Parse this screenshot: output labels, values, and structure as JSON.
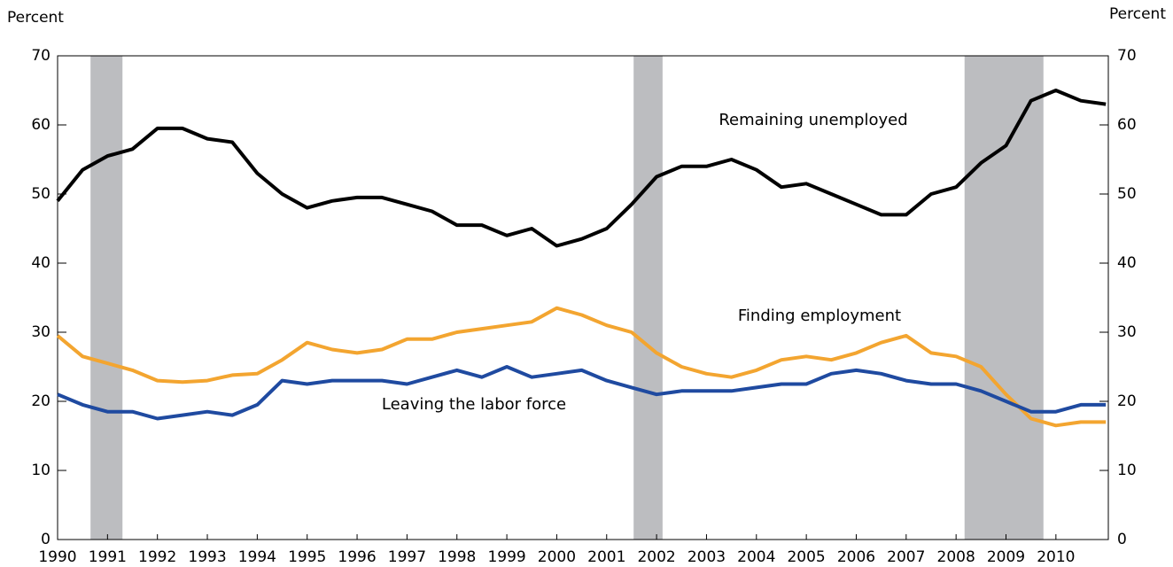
{
  "chart_data": {
    "type": "line",
    "y_label": "Percent",
    "y2_label": "Percent",
    "x": [
      1990,
      1990.5,
      1991,
      1991.5,
      1992,
      1992.5,
      1993,
      1993.5,
      1994,
      1994.5,
      1995,
      1995.5,
      1996,
      1996.5,
      1997,
      1997.5,
      1998,
      1998.5,
      1999,
      1999.5,
      2000,
      2000.5,
      2001,
      2001.5,
      2002,
      2002.5,
      2003,
      2003.5,
      2004,
      2004.5,
      2005,
      2005.5,
      2006,
      2006.5,
      2007,
      2007.5,
      2008,
      2008.5,
      2009,
      2009.5,
      2010,
      2010.5,
      2011
    ],
    "series": [
      {
        "name": "Remaining unemployed",
        "color": "#000000",
        "values": [
          49,
          53.5,
          55.5,
          56.5,
          59.5,
          59.5,
          58,
          57.5,
          53,
          50,
          48,
          49,
          49.5,
          49.5,
          48.5,
          47.5,
          45.5,
          45.5,
          44,
          45,
          42.5,
          43.5,
          45,
          48.5,
          52.5,
          54,
          54,
          55,
          53.5,
          51,
          51.5,
          50,
          48.5,
          47,
          47,
          50,
          51,
          54.5,
          57,
          63.5,
          65,
          63.5,
          63
        ]
      },
      {
        "name": "Finding employment",
        "color": "#f3a530",
        "values": [
          29.5,
          26.5,
          25.5,
          24.5,
          23,
          22.8,
          23,
          23.8,
          24,
          26,
          28.5,
          27.5,
          27,
          27.5,
          29,
          29,
          30,
          30.5,
          31,
          31.5,
          33.5,
          32.5,
          31,
          30,
          27,
          25,
          24,
          23.5,
          24.5,
          26,
          26.5,
          26,
          27,
          28.5,
          29.5,
          27,
          26.5,
          25,
          21,
          17.5,
          16.5,
          17,
          17
        ]
      },
      {
        "name": "Leaving the labor force",
        "color": "#1f4aa0",
        "values": [
          21,
          19.5,
          18.5,
          18.5,
          17.5,
          18,
          18.5,
          18,
          19.5,
          23,
          22.5,
          23,
          23,
          23,
          22.5,
          23.5,
          24.5,
          23.5,
          25,
          23.5,
          24,
          24.5,
          23,
          22,
          21,
          21.5,
          21.5,
          21.5,
          22,
          22.5,
          22.5,
          24,
          24.5,
          24,
          23,
          22.5,
          22.5,
          21.5,
          20,
          18.5,
          18.5,
          19.5,
          19.5
        ]
      }
    ],
    "recessions": [
      [
        1990.66,
        1991.3
      ],
      [
        2001.54,
        2002.12
      ],
      [
        2008.17,
        2009.75
      ]
    ],
    "xlim": [
      1990,
      2011.05
    ],
    "xticks": [
      1990,
      1991,
      1992,
      1993,
      1994,
      1995,
      1996,
      1997,
      1998,
      1999,
      2000,
      2001,
      2002,
      2003,
      2004,
      2005,
      2006,
      2007,
      2008,
      2009,
      2010
    ],
    "ylim": [
      0,
      70
    ],
    "yticks": [
      0,
      10,
      20,
      30,
      40,
      50,
      60,
      70
    ],
    "y2lim": [
      0,
      70
    ],
    "y2ticks": [
      0,
      10,
      20,
      30,
      40,
      50,
      60,
      70
    ]
  }
}
